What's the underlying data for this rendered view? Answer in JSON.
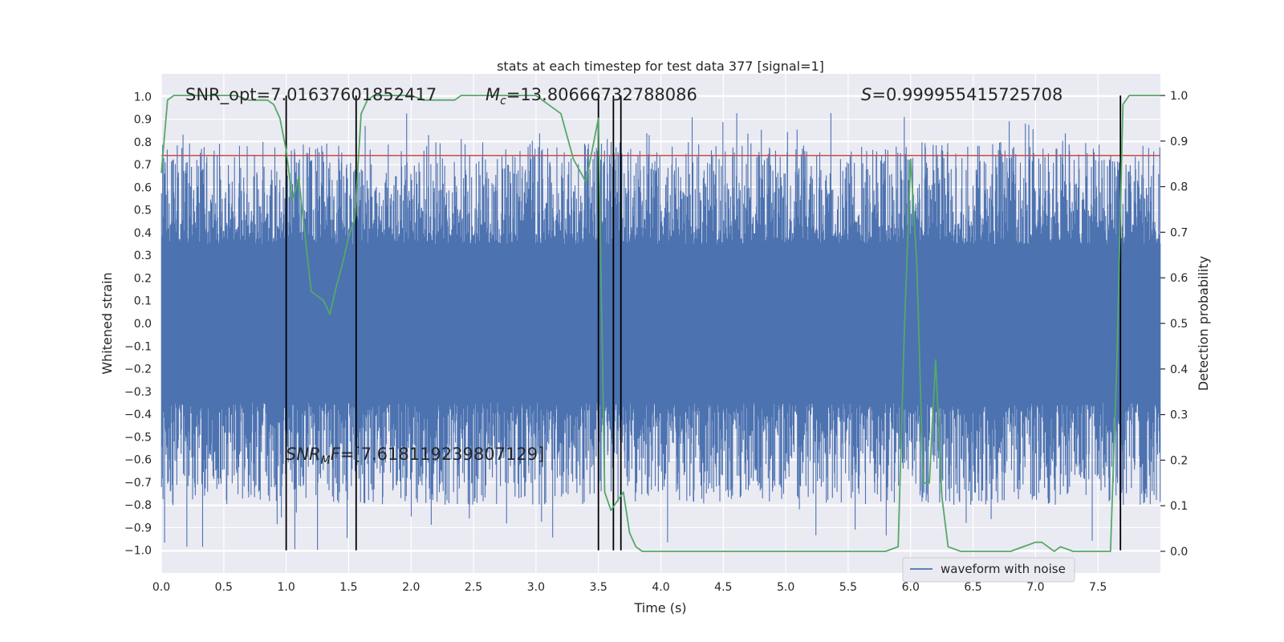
{
  "chart_data": {
    "type": "line",
    "title": "stats at each timestep for test data 377 [signal=1]",
    "xlabel": "Time (s)",
    "ylabel": "Whitened strain",
    "ylabel_right": "Detection probability",
    "xlim": [
      0.0,
      8.0
    ],
    "ylim": [
      -1.1,
      1.1
    ],
    "ylim_right": [
      -0.0475,
      1.0475
    ],
    "xticks": [
      0.0,
      0.5,
      1.0,
      1.5,
      2.0,
      2.5,
      3.0,
      3.5,
      4.0,
      4.5,
      5.0,
      5.5,
      6.0,
      6.5,
      7.0,
      7.5
    ],
    "xtick_labels": [
      "0.0",
      "0.5",
      "1.0",
      "1.5",
      "2.0",
      "2.5",
      "3.0",
      "3.5",
      "4.0",
      "4.5",
      "5.0",
      "5.5",
      "6.0",
      "6.5",
      "7.0",
      "7.5"
    ],
    "yticks": [
      1.0,
      0.9,
      0.8,
      0.7,
      0.6,
      0.5,
      0.4,
      0.3,
      0.2,
      0.1,
      0.0,
      -0.1,
      -0.2,
      -0.3,
      -0.4,
      -0.5,
      -0.6,
      -0.7,
      -0.8,
      -0.9,
      -1.0
    ],
    "ytick_labels": [
      "1.0",
      "0.9",
      "0.8",
      "0.7",
      "0.6",
      "0.5",
      "0.4",
      "0.3",
      "0.2",
      "0.1",
      "0.0",
      "−0.1",
      "−0.2",
      "−0.3",
      "−0.4",
      "−0.5",
      "−0.6",
      "−0.7",
      "−0.8",
      "−0.9",
      "−1.0"
    ],
    "yticks_right": [
      1.0,
      0.9,
      0.8,
      0.7,
      0.6,
      0.5,
      0.4,
      0.3,
      0.2,
      0.1,
      0.0
    ],
    "ytick_labels_right": [
      "1.0",
      "0.9",
      "0.8",
      "0.7",
      "0.6",
      "0.5",
      "0.4",
      "0.3",
      "0.2",
      "0.1",
      "0.0"
    ],
    "grid": true,
    "legend": {
      "entries": [
        "waveform with noise"
      ],
      "location": "bottom-right"
    },
    "colors": {
      "waveform": "#4c72b0",
      "probability": "#55a868",
      "threshold": "#c44e52",
      "markers": "#000000",
      "background": "#eaeaf2",
      "grid": "#ffffff"
    },
    "series": [
      {
        "name": "waveform with noise",
        "axis": "left",
        "kind": "noise",
        "typical_envelope": [
          -0.35,
          0.35
        ],
        "max_extent": [
          -1.0,
          0.93
        ]
      },
      {
        "name": "Detection probability",
        "axis": "right",
        "x": [
          0.0,
          0.05,
          0.1,
          0.2,
          0.3,
          0.4,
          0.5,
          0.6,
          0.7,
          0.8,
          0.85,
          0.9,
          0.95,
          1.0,
          1.05,
          1.1,
          1.2,
          1.3,
          1.35,
          1.4,
          1.45,
          1.5,
          1.55,
          1.6,
          1.65,
          1.7,
          1.8,
          1.9,
          2.0,
          2.1,
          2.2,
          2.3,
          2.35,
          2.4,
          2.5,
          2.6,
          2.7,
          2.8,
          2.9,
          3.0,
          3.1,
          3.2,
          3.3,
          3.4,
          3.5,
          3.55,
          3.6,
          3.7,
          3.75,
          3.8,
          3.85,
          3.9,
          3.95,
          4.0,
          4.1,
          4.3,
          4.5,
          4.7,
          5.0,
          5.3,
          5.5,
          5.7,
          5.8,
          5.9,
          5.95,
          6.0,
          6.05,
          6.1,
          6.15,
          6.2,
          6.25,
          6.3,
          6.4,
          6.6,
          6.8,
          7.0,
          7.05,
          7.1,
          7.15,
          7.2,
          7.3,
          7.4,
          7.5,
          7.6,
          7.65,
          7.7,
          7.75,
          7.8,
          7.85,
          7.9,
          8.0
        ],
        "y": [
          0.83,
          0.99,
          1.0,
          1.0,
          1.0,
          1.0,
          1.0,
          1.0,
          0.99,
          0.99,
          0.99,
          0.98,
          0.95,
          0.88,
          0.77,
          0.82,
          0.57,
          0.55,
          0.52,
          0.58,
          0.63,
          0.69,
          0.73,
          0.96,
          0.99,
          1.0,
          1.0,
          1.0,
          1.0,
          0.99,
          0.99,
          0.99,
          0.99,
          1.0,
          1.0,
          1.0,
          1.0,
          1.0,
          1.0,
          1.0,
          0.98,
          0.96,
          0.86,
          0.81,
          0.95,
          0.13,
          0.09,
          0.13,
          0.04,
          0.01,
          0.0,
          0.0,
          0.0,
          0.0,
          0.0,
          0.0,
          0.0,
          0.0,
          0.0,
          0.0,
          0.0,
          0.0,
          0.0,
          0.01,
          0.49,
          0.86,
          0.63,
          0.15,
          0.15,
          0.42,
          0.12,
          0.01,
          0.0,
          0.0,
          0.0,
          0.02,
          0.02,
          0.01,
          0.0,
          0.01,
          0.0,
          0.0,
          0.0,
          0.0,
          0.4,
          0.98,
          1.0,
          1.0,
          1.0,
          1.0,
          1.0
        ]
      },
      {
        "name": "threshold",
        "axis": "left",
        "y": 0.74
      }
    ],
    "vlines": [
      1.0,
      1.56,
      3.5,
      3.62,
      3.68,
      7.68
    ],
    "annotations": {
      "snr_opt": "SNR_opt=7.01637601852417",
      "mc_label": "M",
      "mc_sub": "c",
      "mc_value": "=13.80666732788086",
      "s_label": "S",
      "s_value": "=0.999955415725708",
      "snr_mf_label": "SNR",
      "snr_mf_sub": "M",
      "snr_mf_label2": "F",
      "snr_mf_value": "=[7.618119239807129]"
    }
  }
}
